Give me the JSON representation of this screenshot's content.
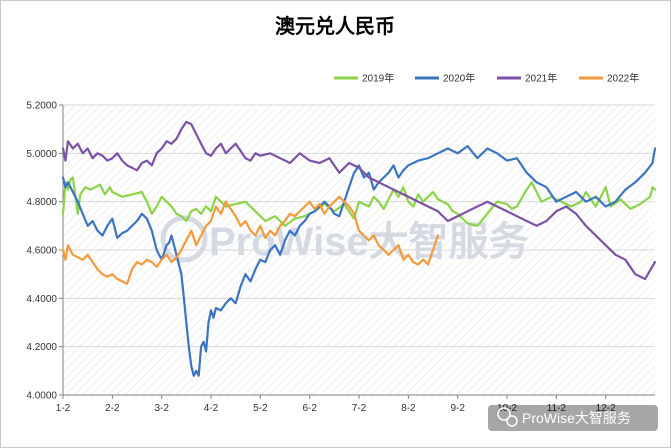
{
  "chart_data": {
    "type": "line",
    "title": "澳元兑人民币",
    "xlabel": "",
    "ylabel": "",
    "ylim": [
      4.0,
      5.2
    ],
    "yticks": [
      "4.0000",
      "4.2000",
      "4.4000",
      "4.6000",
      "4.8000",
      "5.0000",
      "5.2000"
    ],
    "x_ticks": [
      "1-2",
      "2-2",
      "3-2",
      "4-2",
      "5-2",
      "6-2",
      "7-2",
      "8-2",
      "9-2",
      "10-2",
      "11-2",
      "12-2"
    ],
    "x_range": [
      0,
      12
    ],
    "legend_position": "top-right",
    "series": [
      {
        "name": "2019年",
        "color": "#8cd24a",
        "x": [
          0.0,
          0.05,
          0.1,
          0.15,
          0.2,
          0.3,
          0.35,
          0.45,
          0.55,
          0.65,
          0.75,
          0.85,
          0.95,
          1.0,
          1.2,
          1.4,
          1.6,
          1.7,
          1.8,
          1.9,
          2.0,
          2.1,
          2.2,
          2.3,
          2.4,
          2.5,
          2.6,
          2.7,
          2.8,
          2.9,
          3.0,
          3.1,
          3.2,
          3.3,
          3.5,
          3.7,
          3.9,
          4.1,
          4.3,
          4.5,
          4.7,
          4.9,
          5.1,
          5.3,
          5.5,
          5.7,
          5.9,
          6.0,
          6.1,
          6.2,
          6.3,
          6.4,
          6.5,
          6.6,
          6.7,
          6.8,
          6.9,
          7.0,
          7.1,
          7.2,
          7.3,
          7.4,
          7.5,
          7.6,
          7.7,
          7.8,
          7.9,
          8.0,
          8.2,
          8.4,
          8.6,
          8.8,
          9.0,
          9.1,
          9.2,
          9.4,
          9.5,
          9.7,
          9.9,
          10.1,
          10.3,
          10.5,
          10.6,
          10.8,
          10.9,
          11.0,
          11.1,
          11.3,
          11.5,
          11.7,
          11.9,
          11.95,
          12.0
        ],
        "values": [
          4.75,
          4.88,
          4.85,
          4.89,
          4.9,
          4.75,
          4.83,
          4.86,
          4.85,
          4.86,
          4.87,
          4.83,
          4.86,
          4.84,
          4.82,
          4.83,
          4.84,
          4.8,
          4.75,
          4.78,
          4.82,
          4.8,
          4.78,
          4.75,
          4.74,
          4.72,
          4.76,
          4.77,
          4.75,
          4.78,
          4.76,
          4.82,
          4.8,
          4.78,
          4.79,
          4.8,
          4.76,
          4.72,
          4.74,
          4.7,
          4.73,
          4.74,
          4.76,
          4.79,
          4.76,
          4.79,
          4.73,
          4.8,
          4.79,
          4.78,
          4.82,
          4.8,
          4.77,
          4.81,
          4.85,
          4.82,
          4.86,
          4.8,
          4.78,
          4.83,
          4.8,
          4.82,
          4.84,
          4.81,
          4.8,
          4.79,
          4.76,
          4.75,
          4.71,
          4.7,
          4.75,
          4.8,
          4.79,
          4.77,
          4.78,
          4.85,
          4.88,
          4.8,
          4.82,
          4.8,
          4.78,
          4.8,
          4.84,
          4.78,
          4.82,
          4.86,
          4.78,
          4.81,
          4.77,
          4.79,
          4.82,
          4.86,
          4.85
        ]
      },
      {
        "name": "2020年",
        "color": "#3b74c2",
        "x": [
          0.0,
          0.05,
          0.1,
          0.2,
          0.3,
          0.4,
          0.5,
          0.6,
          0.7,
          0.8,
          0.9,
          1.0,
          1.1,
          1.2,
          1.3,
          1.4,
          1.5,
          1.6,
          1.7,
          1.8,
          1.9,
          2.0,
          2.1,
          2.15,
          2.2,
          2.3,
          2.35,
          2.4,
          2.45,
          2.5,
          2.55,
          2.6,
          2.65,
          2.7,
          2.75,
          2.8,
          2.85,
          2.9,
          2.95,
          3.0,
          3.05,
          3.1,
          3.2,
          3.3,
          3.4,
          3.5,
          3.6,
          3.7,
          3.8,
          3.9,
          4.0,
          4.1,
          4.2,
          4.3,
          4.4,
          4.5,
          4.6,
          4.7,
          4.8,
          4.9,
          5.0,
          5.1,
          5.2,
          5.3,
          5.4,
          5.5,
          5.6,
          5.7,
          5.8,
          5.9,
          6.0,
          6.1,
          6.2,
          6.3,
          6.4,
          6.5,
          6.6,
          6.7,
          6.8,
          6.9,
          7.0,
          7.2,
          7.4,
          7.6,
          7.8,
          8.0,
          8.2,
          8.4,
          8.6,
          8.8,
          9.0,
          9.2,
          9.4,
          9.6,
          9.8,
          10.0,
          10.2,
          10.4,
          10.6,
          10.8,
          11.0,
          11.2,
          11.4,
          11.6,
          11.8,
          11.95,
          12.0
        ],
        "values": [
          4.9,
          4.86,
          4.88,
          4.84,
          4.8,
          4.75,
          4.7,
          4.72,
          4.68,
          4.66,
          4.7,
          4.73,
          4.65,
          4.67,
          4.68,
          4.7,
          4.72,
          4.75,
          4.73,
          4.68,
          4.6,
          4.56,
          4.62,
          4.63,
          4.66,
          4.58,
          4.54,
          4.5,
          4.4,
          4.3,
          4.2,
          4.12,
          4.08,
          4.1,
          4.08,
          4.2,
          4.22,
          4.18,
          4.3,
          4.35,
          4.32,
          4.36,
          4.35,
          4.38,
          4.4,
          4.38,
          4.45,
          4.5,
          4.47,
          4.52,
          4.56,
          4.55,
          4.6,
          4.62,
          4.58,
          4.64,
          4.68,
          4.66,
          4.7,
          4.72,
          4.75,
          4.76,
          4.78,
          4.8,
          4.78,
          4.75,
          4.74,
          4.8,
          4.86,
          4.92,
          4.95,
          4.9,
          4.92,
          4.85,
          4.88,
          4.9,
          4.92,
          4.95,
          4.9,
          4.93,
          4.95,
          4.97,
          4.98,
          5.0,
          5.02,
          5.0,
          5.03,
          4.98,
          5.02,
          5.0,
          4.97,
          4.98,
          4.92,
          4.88,
          4.86,
          4.8,
          4.82,
          4.84,
          4.8,
          4.82,
          4.78,
          4.8,
          4.85,
          4.88,
          4.92,
          4.96,
          5.02
        ]
      },
      {
        "name": "2021年",
        "color": "#7b52a6",
        "x": [
          0.0,
          0.05,
          0.1,
          0.2,
          0.3,
          0.4,
          0.5,
          0.6,
          0.7,
          0.8,
          0.9,
          1.0,
          1.1,
          1.2,
          1.3,
          1.4,
          1.5,
          1.6,
          1.7,
          1.8,
          1.9,
          2.0,
          2.1,
          2.2,
          2.3,
          2.4,
          2.5,
          2.6,
          2.7,
          2.8,
          2.9,
          3.0,
          3.1,
          3.2,
          3.3,
          3.4,
          3.5,
          3.6,
          3.7,
          3.8,
          3.9,
          4.0,
          4.2,
          4.4,
          4.6,
          4.8,
          5.0,
          5.2,
          5.4,
          5.6,
          5.8,
          6.0,
          6.2,
          6.4,
          6.6,
          6.8,
          7.0,
          7.2,
          7.4,
          7.6,
          7.8,
          8.0,
          8.2,
          8.4,
          8.6,
          8.8,
          9.0,
          9.2,
          9.4,
          9.6,
          9.8,
          10.0,
          10.2,
          10.4,
          10.6,
          10.8,
          11.0,
          11.2,
          11.4,
          11.6,
          11.8,
          12.0
        ],
        "values": [
          5.02,
          4.97,
          5.05,
          5.02,
          5.04,
          5.0,
          5.02,
          4.98,
          5.0,
          4.99,
          4.97,
          4.98,
          5.0,
          4.97,
          4.95,
          4.94,
          4.93,
          4.96,
          4.97,
          4.95,
          5.0,
          5.02,
          5.05,
          5.04,
          5.06,
          5.1,
          5.13,
          5.12,
          5.08,
          5.04,
          5.0,
          4.99,
          5.02,
          5.04,
          5.0,
          5.02,
          5.04,
          5.01,
          4.98,
          4.97,
          5.0,
          4.99,
          5.0,
          4.98,
          4.96,
          5.0,
          4.97,
          4.96,
          4.98,
          4.92,
          4.96,
          4.94,
          4.9,
          4.88,
          4.86,
          4.84,
          4.82,
          4.8,
          4.78,
          4.76,
          4.72,
          4.74,
          4.76,
          4.78,
          4.8,
          4.78,
          4.76,
          4.74,
          4.72,
          4.7,
          4.72,
          4.76,
          4.78,
          4.75,
          4.7,
          4.66,
          4.62,
          4.58,
          4.56,
          4.5,
          4.48,
          4.55
        ]
      },
      {
        "name": "2022年",
        "color": "#f39a3d",
        "x": [
          0.0,
          0.05,
          0.1,
          0.2,
          0.3,
          0.4,
          0.5,
          0.6,
          0.7,
          0.8,
          0.9,
          1.0,
          1.1,
          1.2,
          1.3,
          1.4,
          1.5,
          1.6,
          1.7,
          1.8,
          1.9,
          2.0,
          2.1,
          2.2,
          2.3,
          2.4,
          2.5,
          2.6,
          2.7,
          2.8,
          2.9,
          3.0,
          3.1,
          3.2,
          3.3,
          3.4,
          3.5,
          3.6,
          3.7,
          3.8,
          3.9,
          4.0,
          4.1,
          4.2,
          4.3,
          4.4,
          4.5,
          4.6,
          4.7,
          4.8,
          4.9,
          5.0,
          5.1,
          5.2,
          5.3,
          5.4,
          5.5,
          5.6,
          5.7,
          5.8,
          5.9,
          6.0,
          6.1,
          6.2,
          6.3,
          6.4,
          6.5,
          6.6,
          6.7,
          6.8,
          6.9,
          7.0,
          7.1,
          7.2,
          7.3,
          7.4,
          7.5,
          7.6
        ],
        "values": [
          4.6,
          4.56,
          4.62,
          4.58,
          4.57,
          4.56,
          4.58,
          4.55,
          4.52,
          4.5,
          4.49,
          4.5,
          4.48,
          4.47,
          4.46,
          4.52,
          4.55,
          4.54,
          4.56,
          4.55,
          4.53,
          4.56,
          4.58,
          4.55,
          4.57,
          4.6,
          4.64,
          4.68,
          4.62,
          4.66,
          4.7,
          4.72,
          4.78,
          4.75,
          4.8,
          4.77,
          4.74,
          4.7,
          4.72,
          4.68,
          4.66,
          4.7,
          4.65,
          4.68,
          4.66,
          4.7,
          4.72,
          4.75,
          4.74,
          4.76,
          4.78,
          4.8,
          4.77,
          4.79,
          4.75,
          4.78,
          4.8,
          4.82,
          4.8,
          4.78,
          4.75,
          4.68,
          4.66,
          4.64,
          4.66,
          4.62,
          4.6,
          4.58,
          4.6,
          4.62,
          4.56,
          4.58,
          4.55,
          4.54,
          4.56,
          4.54,
          4.6,
          4.66
        ]
      }
    ]
  },
  "watermark": {
    "main_text": "ProWise大智服务",
    "account_text": "ProWise大智服务"
  }
}
